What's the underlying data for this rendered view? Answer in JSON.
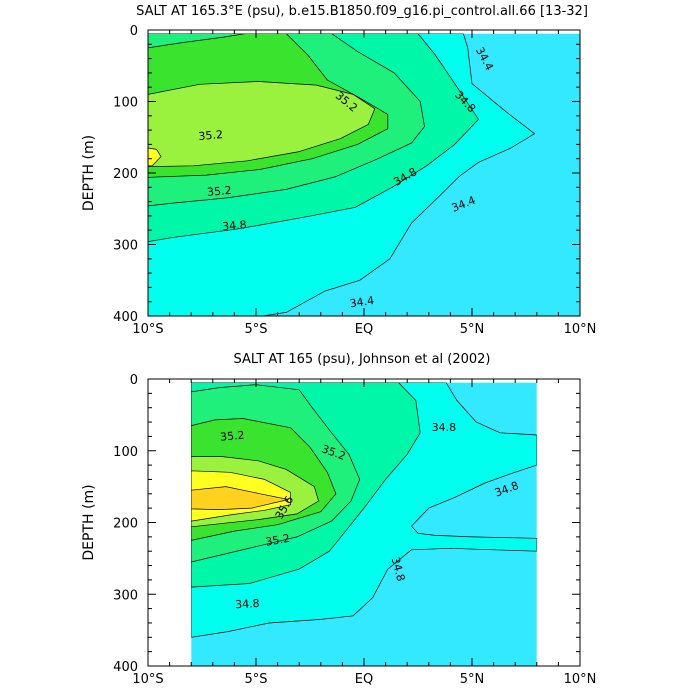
{
  "colors": {
    "bg": "#ffffff",
    "lev_34_2": "#00d2ff",
    "lev_34_4": "#33e9ff",
    "lev_34_6": "#00ffee",
    "lev_34_8": "#00f7a8",
    "lev_35_0": "#1ff07c",
    "lev_35_2": "#3ae42e",
    "lev_35_4": "#9af23e",
    "lev_35_6": "#ffff20",
    "lev_35_8": "#ffd21f"
  },
  "chart_data": [
    {
      "type": "contour",
      "title": "SALT AT 165.3°E (psu), b.e15.B1850.f09_g16.pi_control.all.66 [13-32]",
      "xlabel": "",
      "ylabel": "DEPTH (m)",
      "xlim": [
        -10,
        10
      ],
      "ylim": [
        0,
        400
      ],
      "y_inverted": true,
      "x_ticks": [
        -10,
        -5,
        0,
        5,
        10
      ],
      "x_tick_labels": [
        "10°S",
        "5°S",
        "EQ",
        "5°N",
        "10°N"
      ],
      "y_ticks": [
        0,
        100,
        200,
        300,
        400
      ],
      "y_tick_labels": [
        "0",
        "100",
        "200",
        "300",
        "400"
      ],
      "data_extent": {
        "lat": [
          -10,
          10
        ],
        "depth": [
          5,
          400
        ]
      },
      "regions": [
        {
          "level": 34.4,
          "polygon": [
            [
              -10,
              5
            ],
            [
              10,
              5
            ],
            [
              10,
              400
            ],
            [
              -10,
              400
            ]
          ]
        },
        {
          "level": 34.6,
          "polygon": [
            [
              -10,
              5
            ],
            [
              4.6,
              5
            ],
            [
              4.8,
              25
            ],
            [
              5,
              75
            ],
            [
              6.6,
              115
            ],
            [
              7.9,
              145
            ],
            [
              6.8,
              165
            ],
            [
              5.3,
              185
            ],
            [
              4.4,
              205
            ],
            [
              3.4,
              235
            ],
            [
              2.2,
              270
            ],
            [
              1.2,
              320
            ],
            [
              -0.2,
              350
            ],
            [
              -1.8,
              365
            ],
            [
              -3.6,
              395
            ],
            [
              -4.7,
              400
            ],
            [
              -10,
              400
            ]
          ]
        },
        {
          "level": 34.8,
          "polygon": [
            [
              -10,
              5
            ],
            [
              2.5,
              5
            ],
            [
              3.3,
              35
            ],
            [
              4.2,
              75
            ],
            [
              5.3,
              125
            ],
            [
              4.2,
              160
            ],
            [
              2.9,
              190
            ],
            [
              1.3,
              220
            ],
            [
              -0.4,
              248
            ],
            [
              -2.8,
              262
            ],
            [
              -5.8,
              278
            ],
            [
              -8.8,
              290
            ],
            [
              -10,
              296
            ],
            [
              -10,
              5
            ]
          ]
        },
        {
          "level": 35.0,
          "polygon": [
            [
              -10,
              5
            ],
            [
              -1.5,
              5
            ],
            [
              -0.3,
              30
            ],
            [
              1.4,
              60
            ],
            [
              2.6,
              100
            ],
            [
              2.8,
              135
            ],
            [
              2.2,
              158
            ],
            [
              0.5,
              182
            ],
            [
              -1.3,
              205
            ],
            [
              -3.6,
              223
            ],
            [
              -6.4,
              235
            ],
            [
              -8.8,
              242
            ],
            [
              -10,
              246
            ],
            [
              -10,
              5
            ]
          ]
        },
        {
          "level": 35.2,
          "polygon": [
            [
              -10,
              25
            ],
            [
              -8.5,
              18
            ],
            [
              -6.5,
              10
            ],
            [
              -5.5,
              5
            ],
            [
              -3.6,
              5
            ],
            [
              -2.6,
              35
            ],
            [
              -1.7,
              70
            ],
            [
              -0.2,
              95
            ],
            [
              1.1,
              118
            ],
            [
              1.1,
              138
            ],
            [
              -0.3,
              160
            ],
            [
              -2.4,
              180
            ],
            [
              -4.8,
              195
            ],
            [
              -7.3,
              203
            ],
            [
              -10,
              206
            ],
            [
              -10,
              25
            ]
          ]
        },
        {
          "level": 35.4,
          "polygon": [
            [
              -10,
              90
            ],
            [
              -7.6,
              76
            ],
            [
              -4.9,
              72
            ],
            [
              -2.2,
              77
            ],
            [
              -0.5,
              90
            ],
            [
              0.5,
              110
            ],
            [
              0.2,
              132
            ],
            [
              -1.1,
              152
            ],
            [
              -3.0,
              170
            ],
            [
              -5.4,
              183
            ],
            [
              -7.9,
              190
            ],
            [
              -10,
              191
            ],
            [
              -10,
              90
            ]
          ]
        },
        {
          "level": 35.6,
          "polygon": [
            [
              -10,
              165
            ],
            [
              -9.6,
              167
            ],
            [
              -9.4,
              177
            ],
            [
              -9.8,
              190
            ],
            [
              -10,
              190
            ]
          ]
        }
      ],
      "contour_labels": [
        {
          "text": "34.4",
          "lon": 5.6,
          "depth": 40,
          "angle": 62
        },
        {
          "text": "34.8",
          "lon": 4.7,
          "depth": 100,
          "angle": 47
        },
        {
          "text": "35.2",
          "lon": -0.8,
          "depth": 100,
          "angle": 40
        },
        {
          "text": "35.2",
          "lon": -7.1,
          "depth": 147,
          "angle": -5
        },
        {
          "text": "35.2",
          "lon": -6.7,
          "depth": 225,
          "angle": -5
        },
        {
          "text": "34.8",
          "lon": 1.9,
          "depth": 205,
          "angle": -30
        },
        {
          "text": "34.4",
          "lon": 4.6,
          "depth": 243,
          "angle": -22
        },
        {
          "text": "34.8",
          "lon": -6.0,
          "depth": 273,
          "angle": -5
        },
        {
          "text": "34.4",
          "lon": -0.1,
          "depth": 380,
          "angle": -8
        }
      ]
    },
    {
      "type": "contour",
      "title": "SALT AT 165 (psu), Johnson et al (2002)",
      "xlabel": "",
      "ylabel": "DEPTH (m)",
      "xlim": [
        -10,
        10
      ],
      "ylim": [
        0,
        400
      ],
      "y_inverted": true,
      "x_ticks": [
        -10,
        -5,
        0,
        5,
        10
      ],
      "x_tick_labels": [
        "10°S",
        "5°S",
        "EQ",
        "5°N",
        "10°N"
      ],
      "y_ticks": [
        0,
        100,
        200,
        300,
        400
      ],
      "y_tick_labels": [
        "0",
        "100",
        "200",
        "300",
        "400"
      ],
      "data_extent": {
        "lat": [
          -8,
          8
        ],
        "depth": [
          5,
          400
        ]
      },
      "regions": [
        {
          "level": 34.4,
          "polygon": [
            [
              -8,
              5
            ],
            [
              8,
              5
            ],
            [
              8,
              400
            ],
            [
              -8,
              400
            ]
          ]
        },
        {
          "level": 34.6,
          "polygon": [
            [
              -8,
              5
            ],
            [
              3.8,
              5
            ],
            [
              4.3,
              30
            ],
            [
              5.2,
              60
            ],
            [
              6.3,
              75
            ],
            [
              8,
              78
            ],
            [
              8,
              120
            ],
            [
              6.8,
              132
            ],
            [
              5.6,
              145
            ],
            [
              4.2,
              165
            ],
            [
              3.0,
              180
            ],
            [
              2.2,
              205
            ],
            [
              2.5,
              215
            ],
            [
              3.3,
              218
            ],
            [
              5.0,
              220
            ],
            [
              8,
              222
            ],
            [
              8,
              240
            ],
            [
              6,
              238
            ],
            [
              4,
              236
            ],
            [
              2.2,
              238
            ],
            [
              1.1,
              265
            ],
            [
              0.4,
              305
            ],
            [
              -0.5,
              330
            ],
            [
              -2.0,
              335
            ],
            [
              -4.4,
              340
            ],
            [
              -6.3,
              352
            ],
            [
              -8,
              360
            ],
            [
              -8,
              5
            ]
          ]
        },
        {
          "level": 34.8,
          "polygon": [
            [
              -8,
              5
            ],
            [
              1.6,
              5
            ],
            [
              2.4,
              30
            ],
            [
              2.6,
              75
            ],
            [
              2.0,
              105
            ],
            [
              1.0,
              140
            ],
            [
              0.0,
              180
            ],
            [
              -0.8,
              210
            ],
            [
              -1.6,
              240
            ],
            [
              -3.0,
              265
            ],
            [
              -5.3,
              285
            ],
            [
              -8,
              290
            ],
            [
              -8,
              5
            ]
          ]
        },
        {
          "level": 35.0,
          "polygon": [
            [
              -8,
              18
            ],
            [
              -6.7,
              12
            ],
            [
              -5,
              8
            ],
            [
              -3,
              15
            ],
            [
              -2.4,
              40
            ],
            [
              -1.5,
              75
            ],
            [
              -0.7,
              105
            ],
            [
              -0.2,
              140
            ],
            [
              -0.6,
              170
            ],
            [
              -1.5,
              198
            ],
            [
              -3.1,
              220
            ],
            [
              -5.2,
              235
            ],
            [
              -8,
              255
            ],
            [
              -8,
              18
            ]
          ]
        },
        {
          "level": 35.2,
          "polygon": [
            [
              -8,
              65
            ],
            [
              -6.9,
              57
            ],
            [
              -5.6,
              55
            ],
            [
              -3.4,
              68
            ],
            [
              -2.5,
              95
            ],
            [
              -1.7,
              130
            ],
            [
              -1.3,
              160
            ],
            [
              -2.0,
              185
            ],
            [
              -4.0,
              203
            ],
            [
              -6.0,
              212
            ],
            [
              -8,
              225
            ],
            [
              -8,
              65
            ]
          ]
        },
        {
          "level": 35.4,
          "polygon": [
            [
              -8,
              108
            ],
            [
              -6.6,
              108
            ],
            [
              -4.9,
              114
            ],
            [
              -3.6,
              126
            ],
            [
              -2.3,
              150
            ],
            [
              -2.1,
              170
            ],
            [
              -3.1,
              188
            ],
            [
              -4.9,
              196
            ],
            [
              -8,
              206
            ],
            [
              -8,
              108
            ]
          ]
        },
        {
          "level": 35.6,
          "polygon": [
            [
              -8,
              128
            ],
            [
              -6.2,
              130
            ],
            [
              -4.6,
              140
            ],
            [
              -3.4,
              158
            ],
            [
              -3.4,
              175
            ],
            [
              -4.6,
              183
            ],
            [
              -6.1,
              189
            ],
            [
              -8,
              198
            ],
            [
              -8,
              128
            ]
          ]
        },
        {
          "level": 35.8,
          "polygon": [
            [
              -8,
              155
            ],
            [
              -6.4,
              150
            ],
            [
              -4.8,
              160
            ],
            [
              -3.5,
              168
            ],
            [
              -5.2,
              180
            ],
            [
              -6.7,
              182
            ],
            [
              -8,
              181
            ]
          ]
        }
      ],
      "contour_labels": [
        {
          "text": "35.2",
          "lon": -6.1,
          "depth": 79,
          "angle": -5
        },
        {
          "text": "35.2",
          "lon": -1.4,
          "depth": 102,
          "angle": 20
        },
        {
          "text": "35.6",
          "lon": -3.7,
          "depth": 179,
          "angle": -60
        },
        {
          "text": "35.2",
          "lon": -4.0,
          "depth": 224,
          "angle": -10
        },
        {
          "text": "34.8",
          "lon": 3.7,
          "depth": 67,
          "angle": 0
        },
        {
          "text": "34.8",
          "lon": 6.6,
          "depth": 153,
          "angle": -20
        },
        {
          "text": "34.8",
          "lon": 1.6,
          "depth": 265,
          "angle": 75
        },
        {
          "text": "34.8",
          "lon": -5.4,
          "depth": 313,
          "angle": -3
        }
      ]
    }
  ]
}
